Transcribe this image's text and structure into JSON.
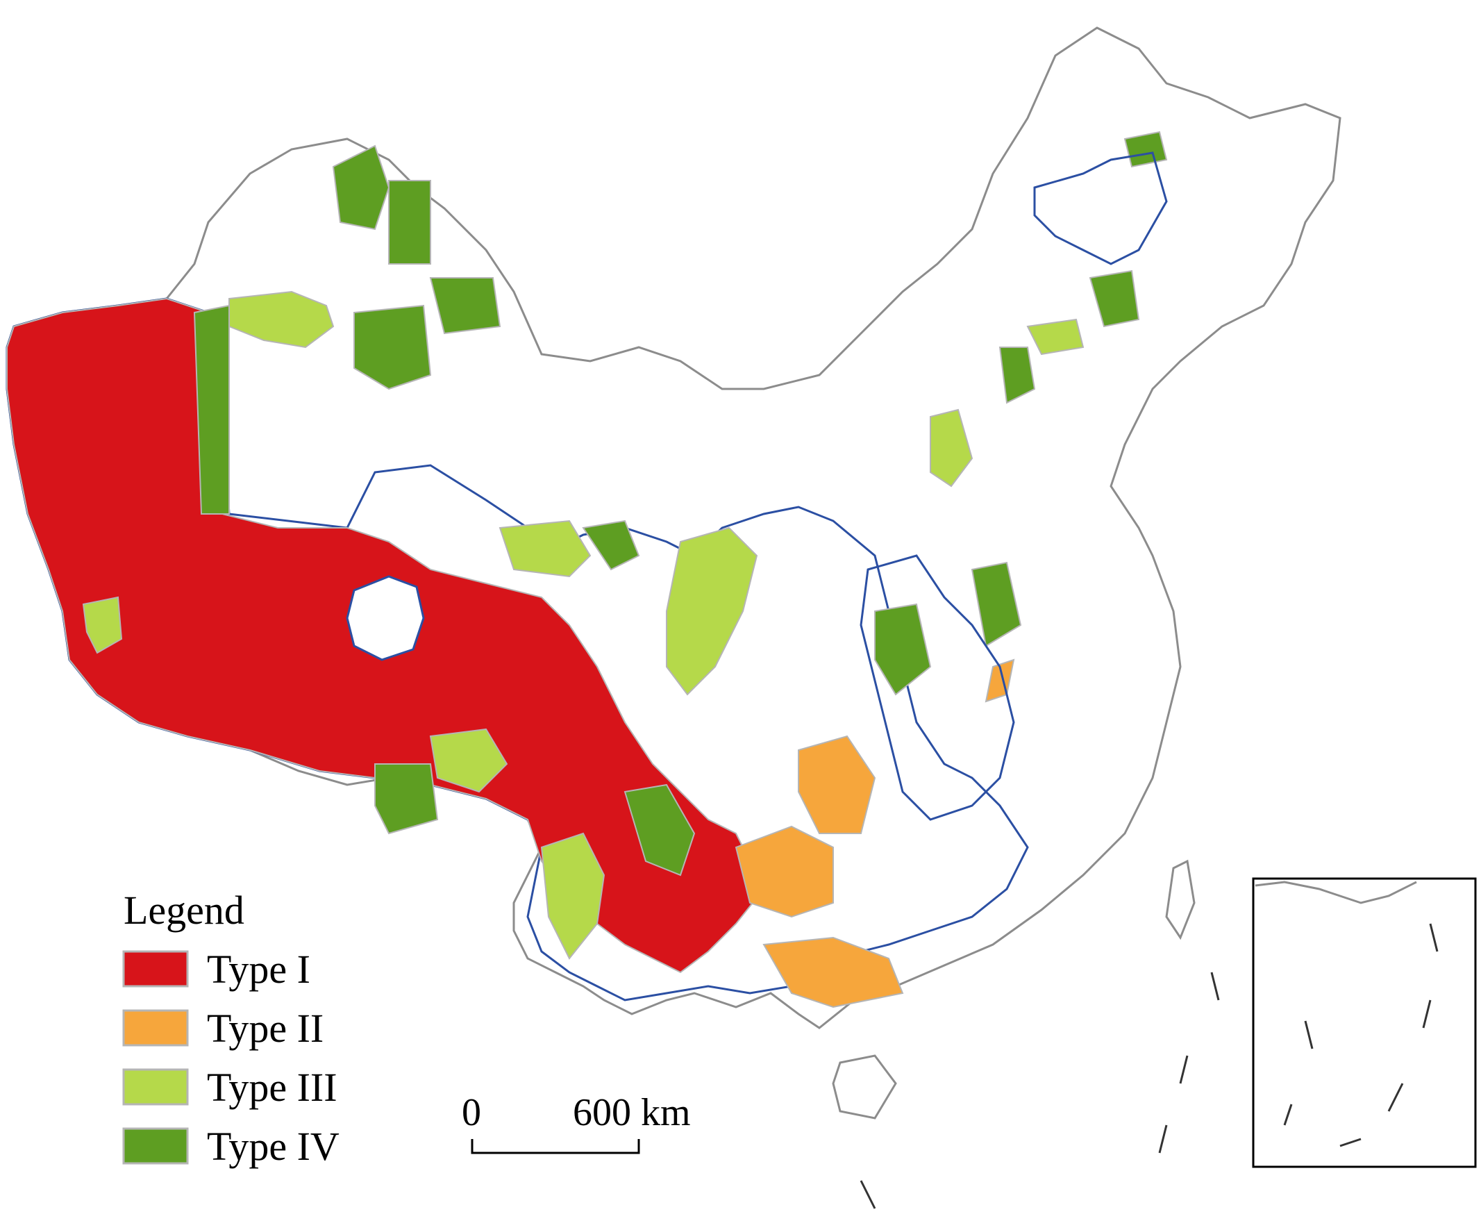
{
  "legend": {
    "title": "Legend",
    "items": [
      {
        "label": "Type I",
        "color": "#d7141a"
      },
      {
        "label": "Type II",
        "color": "#f6a63c"
      },
      {
        "label": "Type III",
        "color": "#b5d94a"
      },
      {
        "label": "Type IV",
        "color": "#5e9e22"
      }
    ]
  },
  "scale_bar": {
    "start_label": "0",
    "end_label": "600 km"
  },
  "colors": {
    "province_boundary": "#8c8c8c",
    "region_boundary": "#2b4fa3",
    "inset_frame": "#000000",
    "background": "#ffffff"
  }
}
